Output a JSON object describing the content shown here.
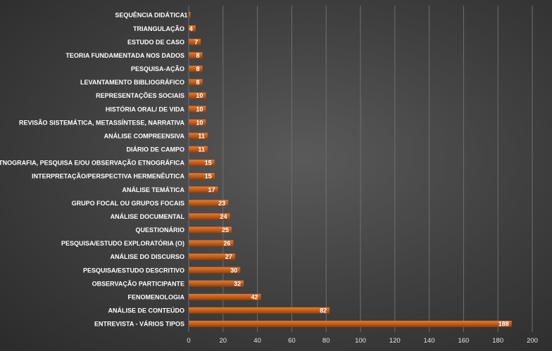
{
  "chart_data": {
    "type": "bar",
    "orientation": "horizontal",
    "title": "",
    "xlabel": "",
    "ylabel": "",
    "xlim": [
      0,
      200
    ],
    "x_ticks": [
      "0",
      "20",
      "40",
      "60",
      "80",
      "100",
      "120",
      "140",
      "160",
      "180",
      "200"
    ],
    "grid": true,
    "bar_color": "#c55a11",
    "background": "#404040",
    "categories": [
      "SEQUÊNCIA DIDÁTICA",
      "TRIANGULAÇÃO",
      "ESTUDO DE CASO",
      "TEORIA FUNDAMENTADA NOS DADOS",
      "PESQUISA-AÇÃO",
      "LEVANTAMENTO BIBLIOGRÁFICO",
      "REPRESENTAÇÕES SOCIAIS",
      "HISTÓRIA ORAL/ DE VIDA",
      "REVISÃO SISTEMÁTICA, METASSÍNTESE, NARRATIVA",
      "ANÁLISE COMPREENSIVA",
      "DIÁRIO DE CAMPO",
      "ETNOGRAFIA, PESQUISA E/OU OBSERVAÇÃO ETNOGRÁFICA",
      "INTERPRETAÇÃO/PERSPECTIVA HERMENÊUTICA",
      "ANÁLISE TEMÁTICA",
      "GRUPO FOCAL OU GRUPOS FOCAIS",
      "ANÁLISE DOCUMENTAL",
      "QUESTIONÁRIO",
      "PESQUISA/ESTUDO EXPLORATÓRIA (O)",
      "ANÁLISE DO DISCURSO",
      "PESQUISA/ESTUDO DESCRITIVO",
      "OBSERVAÇÃO PARTICIPANTE",
      "FENOMENOLOGIA",
      "ANÁLISE DE CONTEÚDO",
      "ENTREVISTA - VÁRIOS TIPOS"
    ],
    "values": [
      1,
      4,
      7,
      8,
      8,
      8,
      10,
      10,
      10,
      11,
      11,
      15,
      15,
      17,
      23,
      24,
      25,
      26,
      27,
      30,
      32,
      42,
      82,
      188
    ],
    "data_labels": [
      "1",
      "4",
      "7",
      "8",
      "8",
      "8",
      "10",
      "10",
      "10",
      "11",
      "11",
      "15",
      "15",
      "17",
      "23",
      "24",
      "25",
      "26",
      "27",
      "30",
      "32",
      "42",
      "82",
      "188"
    ]
  }
}
